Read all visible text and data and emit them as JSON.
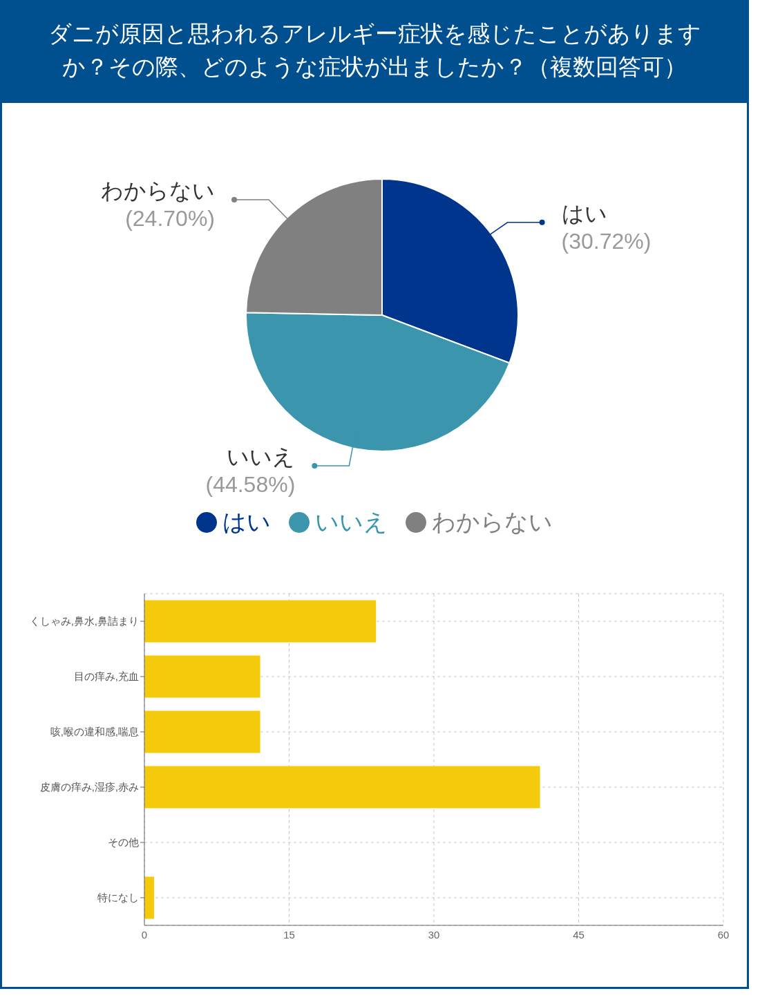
{
  "chart_data": [
    {
      "type": "pie",
      "title": "ダニが原因と思われるアレルギー症状を感じたことがありますか？その際、どのような症状が出ましたか？（複数回答可）",
      "categories": [
        "はい",
        "いいえ",
        "わからない"
      ],
      "values": [
        30.72,
        44.58,
        24.7
      ],
      "value_labels": [
        "(30.72%)",
        "(44.58%)",
        "(24.70%)"
      ],
      "colors": [
        "#00358e",
        "#3a95ad",
        "#808080"
      ],
      "legend": "bottom"
    },
    {
      "type": "bar",
      "orientation": "horizontal",
      "categories": [
        "くしゃみ,鼻水,鼻詰まり",
        "目の痒み,充血",
        "咳,喉の違和感,喘息",
        "皮膚の痒み,湿疹,赤み",
        "その他",
        "特になし"
      ],
      "values": [
        24,
        12,
        12,
        41,
        0,
        1
      ],
      "color": "#f5ca0c",
      "xlim": [
        0,
        60
      ],
      "xticks": [
        0,
        15,
        30,
        45,
        60
      ],
      "grid": true
    }
  ]
}
